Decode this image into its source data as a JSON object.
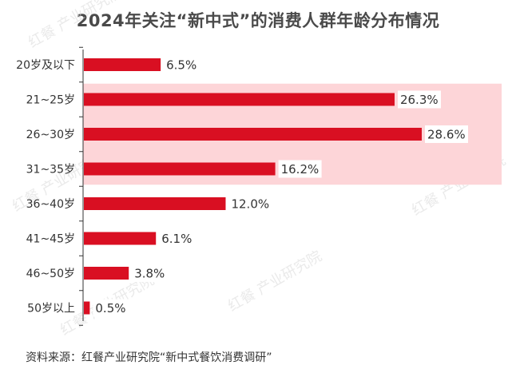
{
  "title": "2024年关注“新中式”的消费人群年龄分布情况",
  "source": "资料来源：红餐产业研究院“新中式餐饮消费调研”",
  "watermark_text": "红餐 产业研究院",
  "colors": {
    "bar": "#d90f22",
    "highlight": "#fdd5d8",
    "axis": "#333333"
  },
  "chart_data": {
    "type": "bar",
    "orientation": "horizontal",
    "categories": [
      "20岁及以下",
      "21~25岁",
      "26~30岁",
      "31~35岁",
      "36~40岁",
      "41~45岁",
      "46~50岁",
      "50岁以上"
    ],
    "values": [
      6.5,
      26.3,
      28.6,
      16.2,
      12.0,
      6.1,
      3.8,
      0.5
    ],
    "value_labels": [
      "6.5%",
      "26.3%",
      "28.6%",
      "16.2%",
      "12.0%",
      "6.1%",
      "3.8%",
      "0.5%"
    ],
    "highlighted_categories": [
      "21~25岁",
      "26~30岁",
      "31~35岁"
    ],
    "title": "2024年关注“新中式”的消费人群年龄分布情况",
    "xlabel": "",
    "ylabel": "",
    "xlim": [
      0,
      30
    ],
    "grid": false,
    "legend": "none"
  }
}
